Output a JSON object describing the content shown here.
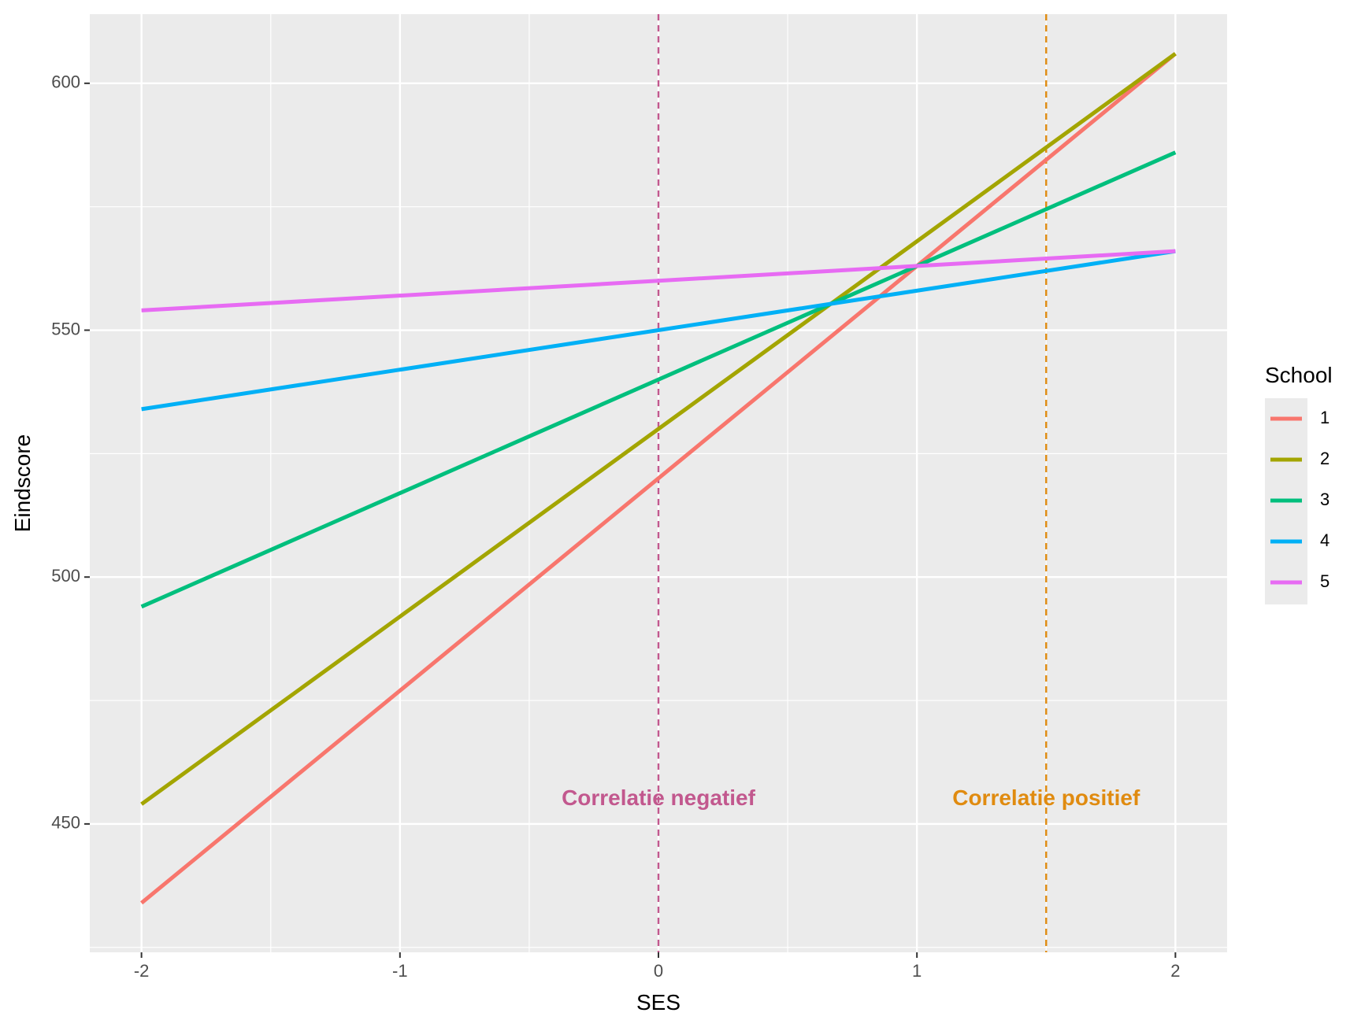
{
  "chart_data": {
    "type": "line",
    "title": "",
    "xlabel": "SES",
    "ylabel": "Eindscore",
    "xlim": [
      -2.2,
      2.2
    ],
    "ylim": [
      424,
      614
    ],
    "x_ticks": [
      -2,
      -1,
      0,
      1,
      2
    ],
    "x_tick_labels": [
      "-2",
      "-1",
      "0",
      "1",
      "2"
    ],
    "y_ticks": [
      450,
      500,
      550,
      600
    ],
    "y_tick_labels": [
      "450",
      "500",
      "550",
      "600"
    ],
    "grid": true,
    "legend_title": "School",
    "legend_position": "right",
    "series": [
      {
        "name": "1",
        "color": "#F8766D",
        "x": [
          -2,
          2
        ],
        "y": [
          434,
          606
        ]
      },
      {
        "name": "2",
        "color": "#A3A500",
        "x": [
          -2,
          2
        ],
        "y": [
          454,
          606
        ]
      },
      {
        "name": "3",
        "color": "#00BF7D",
        "x": [
          -2,
          2
        ],
        "y": [
          494,
          586
        ]
      },
      {
        "name": "4",
        "color": "#00B0F6",
        "x": [
          -2,
          2
        ],
        "y": [
          534,
          566
        ]
      },
      {
        "name": "5",
        "color": "#E76BF3",
        "x": [
          -2,
          2
        ],
        "y": [
          554,
          566
        ]
      }
    ],
    "vlines": [
      {
        "x": 0,
        "color": "#C2588E",
        "style": "dashed"
      },
      {
        "x": 1.5,
        "color": "#E08B10",
        "style": "dashed"
      }
    ],
    "annotations": [
      {
        "text": "Correlatie negatief",
        "x": 0,
        "y": 455,
        "color": "#C2588E"
      },
      {
        "text": "Correlatie positief",
        "x": 1.5,
        "y": 455,
        "color": "#E08B10"
      }
    ]
  }
}
